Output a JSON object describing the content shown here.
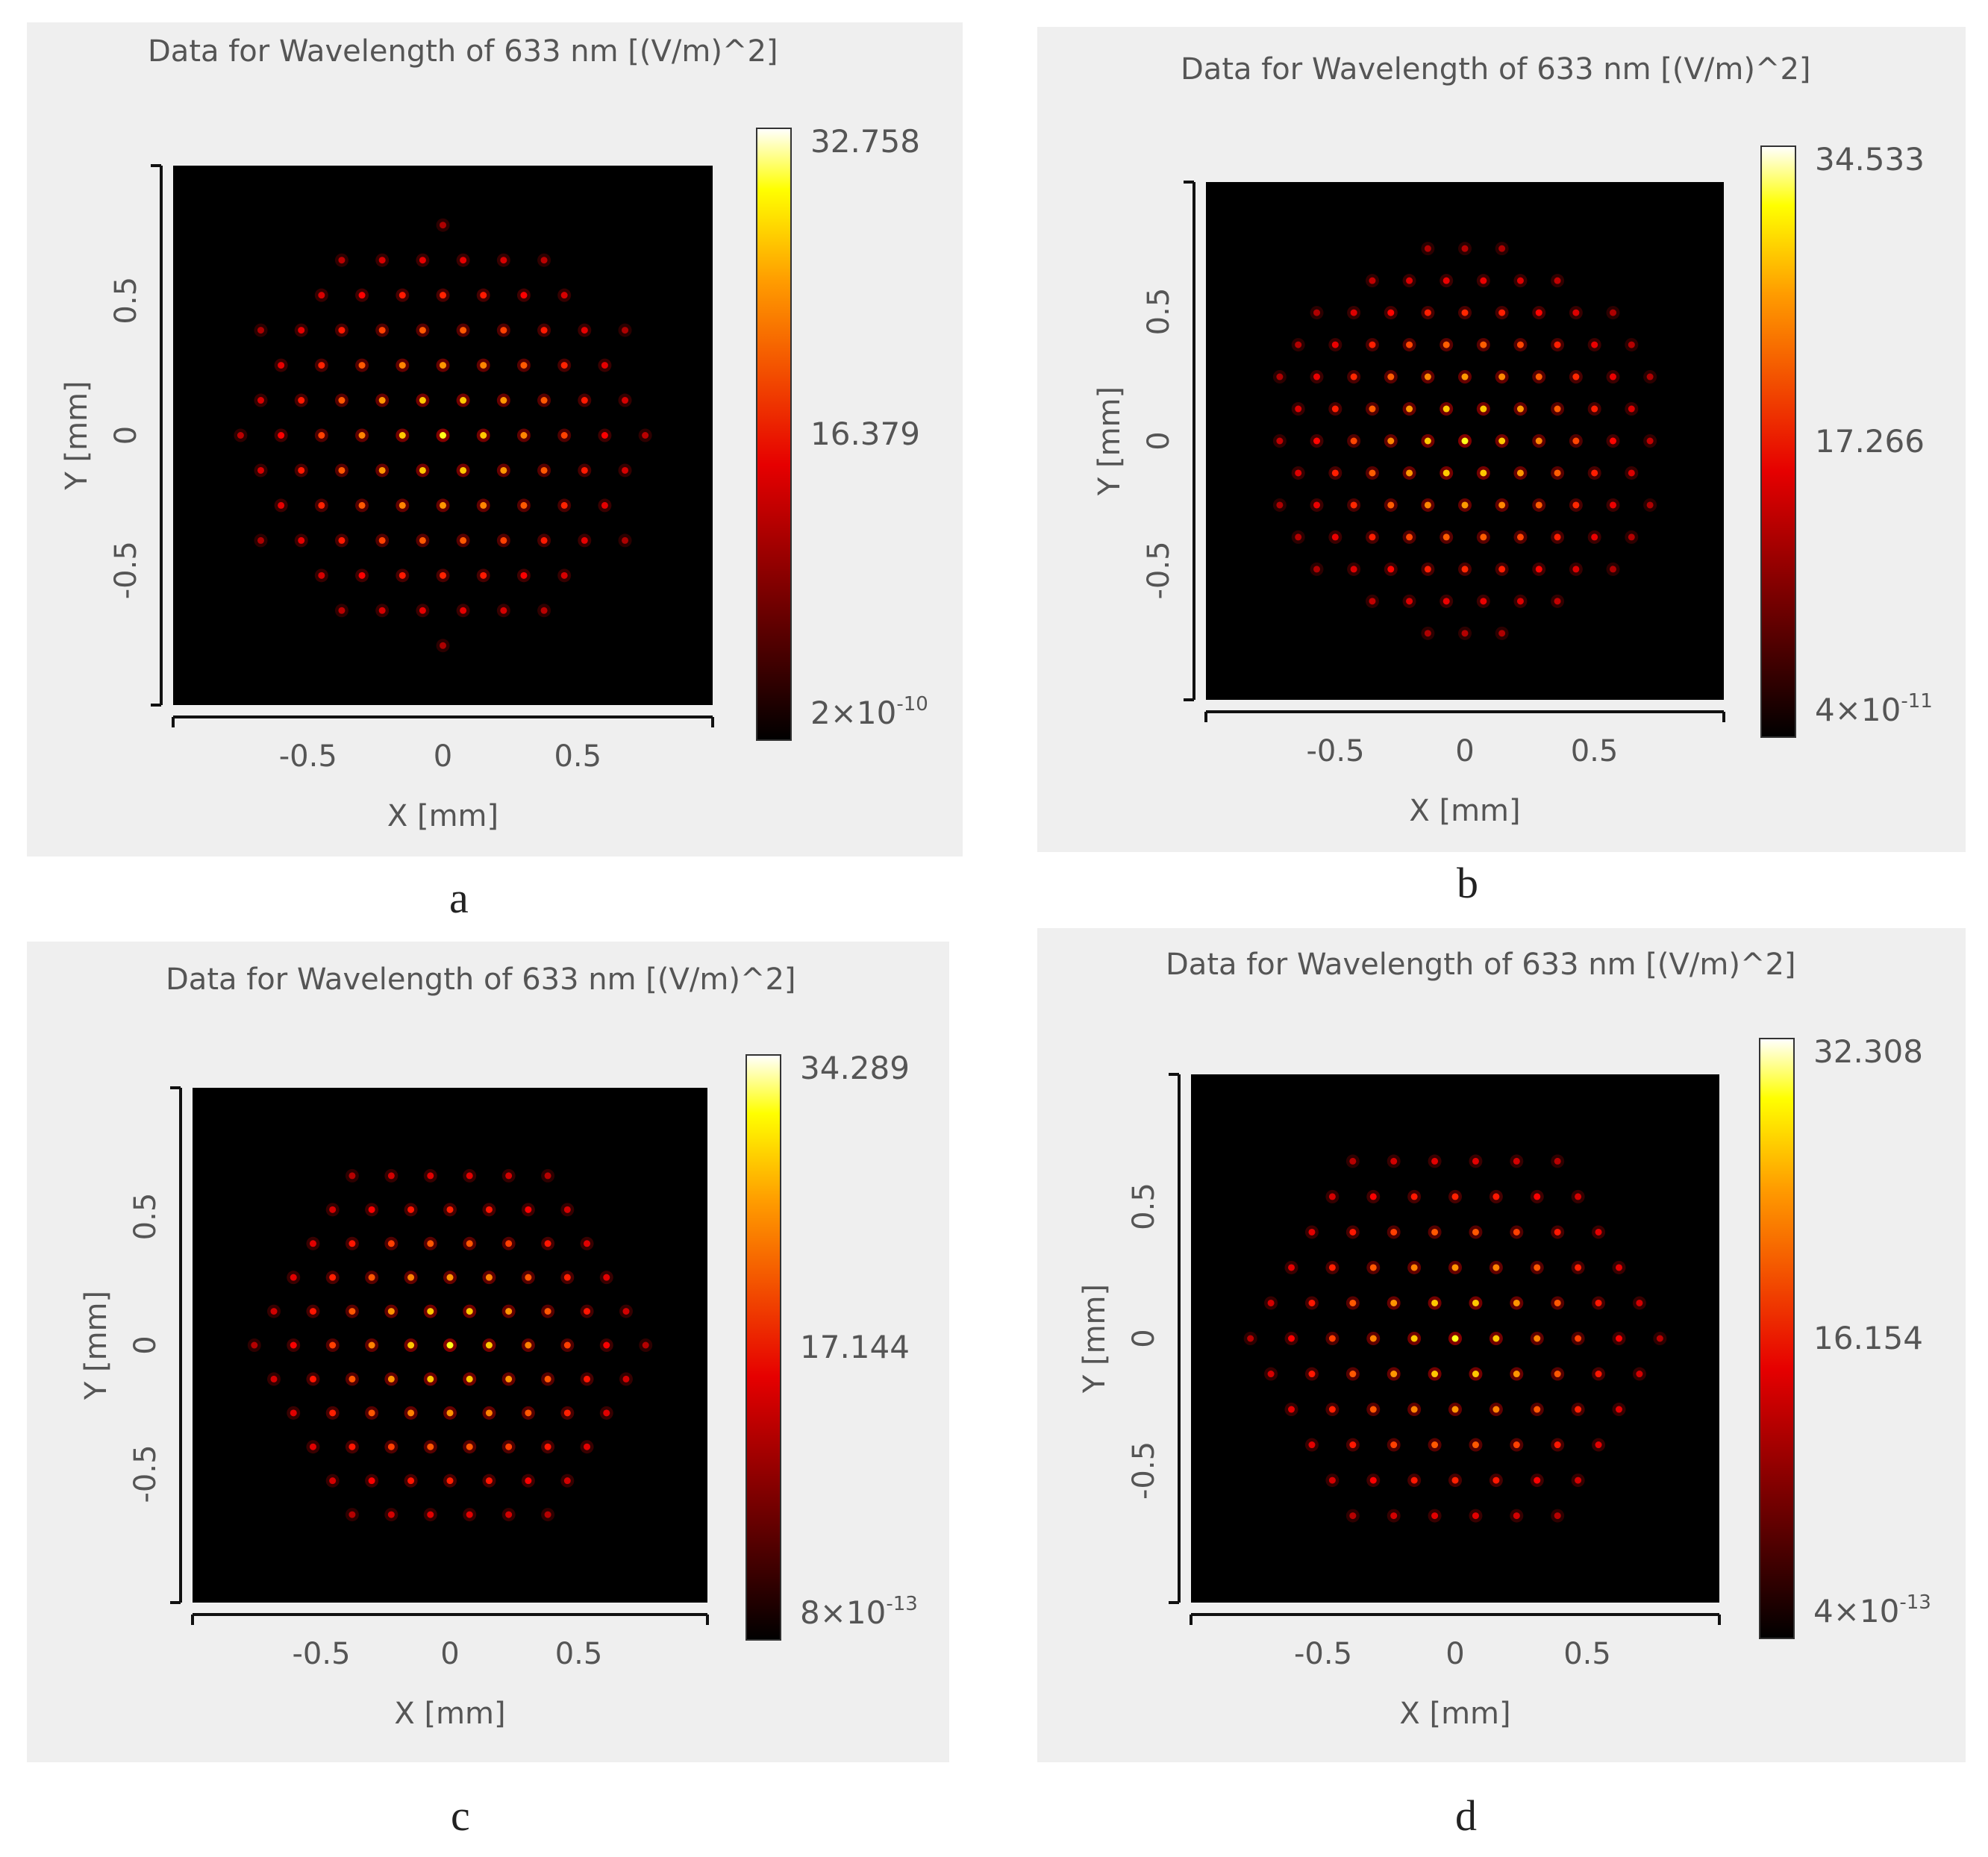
{
  "panels": [
    {
      "caption": "a",
      "chart_data": {
        "type": "heatmap",
        "title": "Data for Wavelength of 633 nm  [(V/m)^2]",
        "xlabel": "X [mm]",
        "ylabel": "Y [mm]",
        "xlim": [
          -1,
          1
        ],
        "ylim": [
          -1,
          1
        ],
        "x_ticks": [
          "-0.5",
          "0",
          "0.5"
        ],
        "y_ticks": [
          "0.5",
          "0",
          "-0.5"
        ],
        "colorbar": {
          "max": "32.758",
          "mid": "16.379",
          "min_mantissa": "2×10",
          "min_exp": "-10"
        },
        "spot_pitch_mm": 0.15,
        "spot_radius_mm": 0.78,
        "spot_dx_mm": 0,
        "spot_dy_mm": 0,
        "max_value": 32.758
      }
    },
    {
      "caption": "b",
      "chart_data": {
        "type": "heatmap",
        "title": "Data for Wavelength of 633 nm  [(V/m)^2]",
        "xlabel": "X [mm]",
        "ylabel": "Y [mm]",
        "xlim": [
          -1,
          1
        ],
        "ylim": [
          -1,
          1
        ],
        "x_ticks": [
          "-0.5",
          "0",
          "0.5"
        ],
        "y_ticks": [
          "0.5",
          "0",
          "-0.5"
        ],
        "colorbar": {
          "max": "34.533",
          "mid": "17.266",
          "min_mantissa": "4×10",
          "min_exp": "-11"
        },
        "spot_pitch_mm": 0.143,
        "spot_radius_mm": 0.76,
        "spot_dx_mm": 0,
        "spot_dy_mm": 0,
        "max_value": 34.533
      }
    },
    {
      "caption": "c",
      "chart_data": {
        "type": "heatmap",
        "title": "Data for Wavelength of 633 nm  [(V/m)^2]",
        "xlabel": "X [mm]",
        "ylabel": "Y [mm]",
        "xlim": [
          -1,
          1
        ],
        "ylim": [
          -1,
          1
        ],
        "x_ticks": [
          "-0.5",
          "0",
          "0.5"
        ],
        "y_ticks": [
          "0.5",
          "0",
          "-0.5"
        ],
        "colorbar": {
          "max": "34.289",
          "mid": "17.144",
          "min_mantissa": "8×10",
          "min_exp": "-13"
        },
        "spot_pitch_mm": 0.152,
        "spot_radius_mm": 0.78,
        "spot_dx_mm": 0,
        "spot_dy_mm": 0,
        "max_value": 34.289
      }
    },
    {
      "caption": "d",
      "chart_data": {
        "type": "heatmap",
        "title": "Data for Wavelength of 633 nm  [(V/m)^2]",
        "xlabel": "X [mm]",
        "ylabel": "Y [mm]",
        "xlim": [
          -1,
          1
        ],
        "ylim": [
          -1,
          1
        ],
        "x_ticks": [
          "-0.5",
          "0",
          "0.5"
        ],
        "y_ticks": [
          "0.5",
          "0",
          "-0.5"
        ],
        "colorbar": {
          "max": "32.308",
          "mid": "16.154",
          "min_mantissa": "4×10",
          "min_exp": "-13"
        },
        "spot_pitch_mm": 0.155,
        "spot_radius_mm": 0.8,
        "spot_dx_mm": 0,
        "spot_dy_mm": 0,
        "max_value": 32.308
      }
    }
  ]
}
